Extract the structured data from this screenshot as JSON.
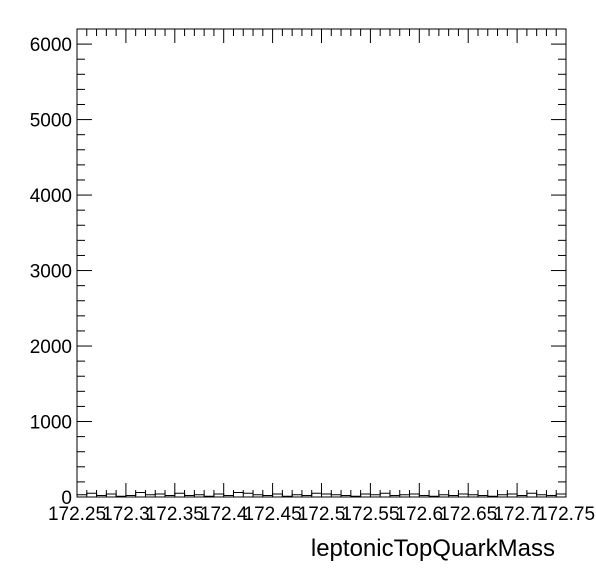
{
  "chart_data": {
    "type": "bar",
    "title": "",
    "xlabel": "leptonicTopQuarkMass",
    "ylabel": "",
    "xlim": [
      172.25,
      172.75
    ],
    "ylim": [
      0,
      6200
    ],
    "x_ticks": [
      172.25,
      172.3,
      172.35,
      172.4,
      172.45,
      172.5,
      172.55,
      172.6,
      172.65,
      172.7,
      172.75
    ],
    "x_tick_labels": [
      "172.25",
      "172.3",
      "172.35",
      "172.4",
      "172.45",
      "172.5",
      "172.55",
      "172.6",
      "172.65",
      "172.7",
      "172.75"
    ],
    "y_ticks": [
      0,
      1000,
      2000,
      3000,
      4000,
      5000,
      6000
    ],
    "y_tick_labels": [
      "0",
      "1000",
      "2000",
      "3000",
      "4000",
      "5000",
      "6000"
    ],
    "grid": false,
    "legend": "none",
    "series": [
      {
        "bin_edges_start": 172.25,
        "bin_width": 0.01,
        "values": [
          30,
          50,
          20,
          40,
          10,
          20,
          60,
          30,
          40,
          20,
          50,
          20,
          30,
          10,
          40,
          20,
          60,
          50,
          30,
          20,
          40,
          10,
          30,
          20,
          50,
          40,
          30,
          20,
          10,
          40,
          30,
          50,
          20,
          30,
          40,
          20,
          10,
          30,
          20,
          40,
          30,
          20,
          10,
          30,
          40,
          20,
          50,
          30,
          20,
          40
        ]
      }
    ],
    "colors": {
      "line": "#000000",
      "background": "#ffffff"
    }
  }
}
